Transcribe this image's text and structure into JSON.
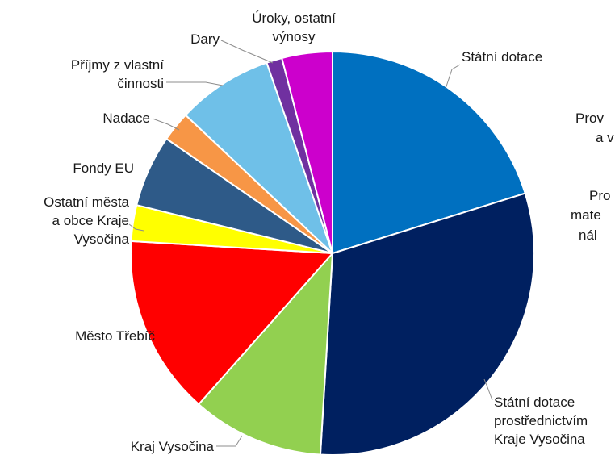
{
  "chart_data": {
    "type": "pie",
    "title": "",
    "legend": "none",
    "slices": [
      {
        "name": "Státní dotace",
        "label_lines": [
          "Státní dotace"
        ],
        "value": 21.0,
        "color": "#0070C0"
      },
      {
        "name": "Státní dotace prostřednictvím Kraje Vysočina",
        "label_lines": [
          "Státní dotace",
          "prostřednictvím",
          "Kraje Vysočina"
        ],
        "value": 32.0,
        "color": "#002060"
      },
      {
        "name": "Kraj Vysočina",
        "label_lines": [
          "Kraj Vysočina"
        ],
        "value": 11.0,
        "color": "#92D050"
      },
      {
        "name": "Město Třebíč",
        "label_lines": [
          "Město Třebíč"
        ],
        "value": 15.0,
        "color": "#FF0000"
      },
      {
        "name": "Ostatní města a obce Kraje Vysočina",
        "label_lines": [
          "Ostatní města",
          "a obce Kraje",
          "Vysočina"
        ],
        "value": 3.0,
        "color": "#FFFF00"
      },
      {
        "name": "Fondy EU",
        "label_lines": [
          "Fondy EU"
        ],
        "value": 6.0,
        "color": "#2E5A88"
      },
      {
        "name": "Nadace",
        "label_lines": [
          "Nadace"
        ],
        "value": 2.5,
        "color": "#F79646"
      },
      {
        "name": "Příjmy z vlastní činnosti",
        "label_lines": [
          "Příjmy z vlastní",
          "činnosti"
        ],
        "value": 8.0,
        "color": "#6FC0E8"
      },
      {
        "name": "Dary",
        "label_lines": [
          "Dary"
        ],
        "value": 1.3,
        "color": "#7030A0"
      },
      {
        "name": "Úroky, ostatní výnosy",
        "label_lines": [
          "Úroky, ostatní",
          "výnosy"
        ],
        "value": 4.2,
        "color": "#CC00CC"
      }
    ],
    "clipped_text": [
      {
        "lines": [
          "Prov",
          "a v"
        ]
      },
      {
        "lines": [
          "Pro",
          "mate",
          "nál"
        ]
      }
    ]
  }
}
